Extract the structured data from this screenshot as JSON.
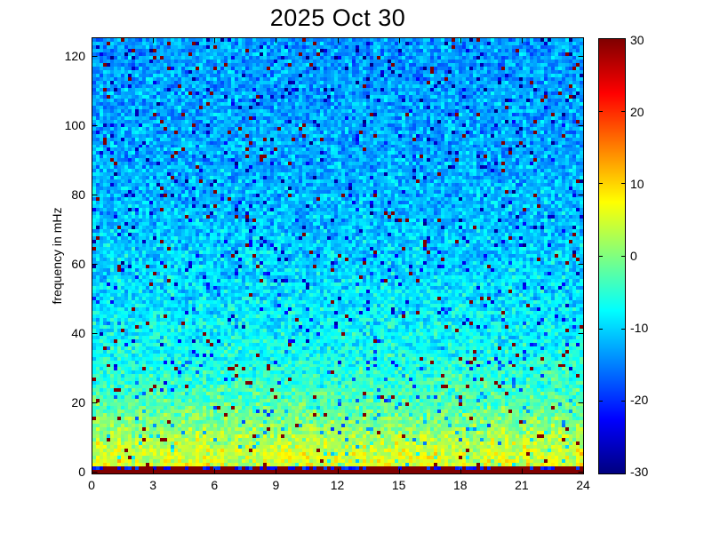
{
  "colors": {
    "background": "#ffffff",
    "axis": "#000000",
    "text": "#000000",
    "spike": "#800000"
  },
  "chart_data": {
    "type": "heatmap",
    "title": "2025 Oct 30",
    "xlabel": "",
    "ylabel": "frequency in mHz",
    "xlim": [
      0,
      24
    ],
    "ylim": [
      -0.5,
      125.5
    ],
    "x_ticks": [
      0,
      3,
      6,
      9,
      12,
      15,
      18,
      21,
      24
    ],
    "y_ticks": [
      0,
      20,
      40,
      60,
      80,
      100,
      120
    ],
    "grid": false,
    "colorbar": {
      "min": -30,
      "max": 30,
      "ticks": [
        30,
        20,
        10,
        0,
        -10,
        -20,
        -30
      ],
      "colormap": "jet",
      "position": "right"
    },
    "pattern": {
      "description": "Noisy power spectrogram: power (dB) decreases with frequency; saturated max-value row at 0 mHz; yellow-green band below ~15 mHz; sparse saturated spikes throughout.",
      "seed": 20251030,
      "time_bins": 138,
      "freq_bins": 123,
      "base_profile_mhz_db": [
        [
          0,
          30
        ],
        [
          2,
          6
        ],
        [
          5,
          5
        ],
        [
          8,
          3.5
        ],
        [
          12,
          1
        ],
        [
          18,
          -2
        ],
        [
          25,
          -4.5
        ],
        [
          35,
          -7
        ],
        [
          50,
          -9
        ],
        [
          70,
          -11
        ],
        [
          90,
          -12.5
        ],
        [
          126,
          -13.5
        ]
      ],
      "noise_amp_db": 6.5,
      "column_variation_db": 2.5,
      "spike_prob": 0.02,
      "spike_value_db": 30,
      "dip_prob": 0.04,
      "dip_delta_db": -14,
      "bottom_row_value_db": 30,
      "second_row_mix": {
        "high_prob": 0.6,
        "high_db": 30,
        "low_db": -24
      }
    }
  }
}
